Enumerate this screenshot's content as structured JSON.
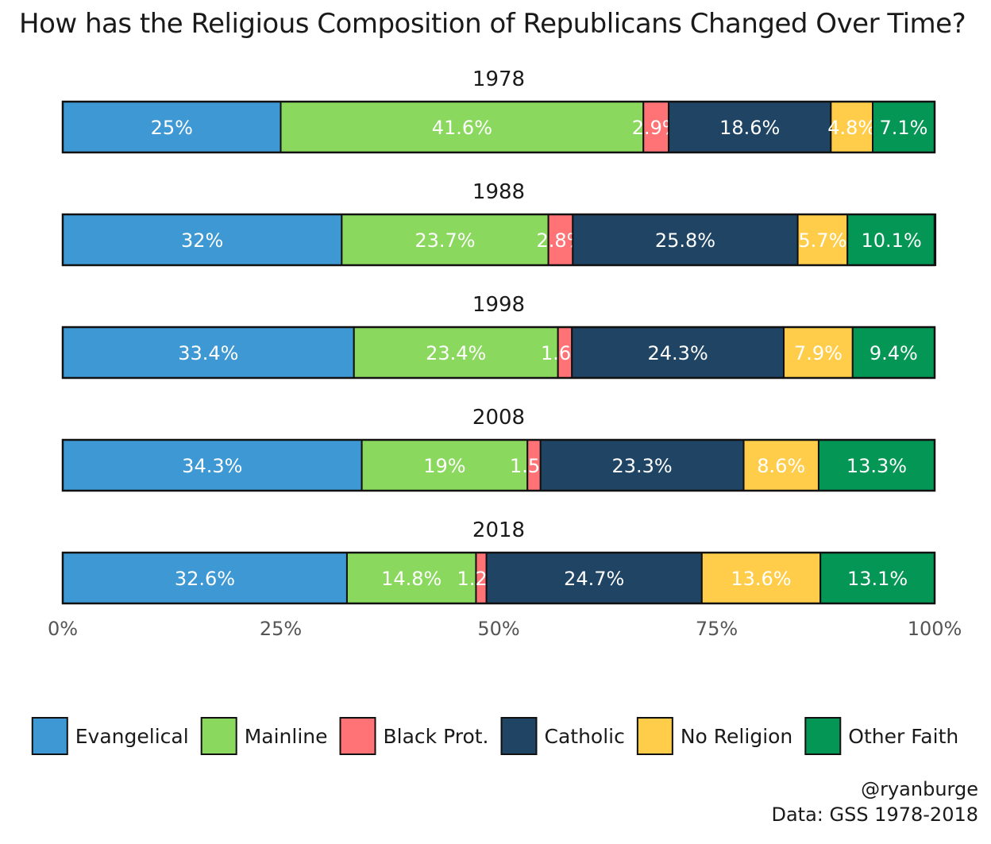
{
  "chart_data": {
    "type": "bar",
    "orientation": "horizontal",
    "stacked": true,
    "title": "How has the Religious Composition of Republicans Changed Over Time?",
    "facets": [
      "1978",
      "1988",
      "1998",
      "2008",
      "2018"
    ],
    "series": [
      {
        "name": "Evangelical",
        "color": "#3d98d3",
        "label_color": "#ffffff",
        "values": [
          25,
          32,
          33.4,
          34.3,
          32.6
        ],
        "labels": [
          "25%",
          "32%",
          "33.4%",
          "34.3%",
          "32.6%"
        ]
      },
      {
        "name": "Mainline",
        "color": "#8ad95e",
        "label_color": "#ffffff",
        "values": [
          41.6,
          23.7,
          23.4,
          19,
          14.8
        ],
        "labels": [
          "41.6%",
          "23.7%",
          "23.4%",
          "19%",
          "14.8%"
        ]
      },
      {
        "name": "Black Prot.",
        "color": "#ff7376",
        "label_color": "#ffffff",
        "values": [
          2.9,
          2.8,
          1.6,
          1.5,
          1.2
        ],
        "labels": [
          "2.9%",
          "2.8%",
          "1.6%",
          "1.5%",
          "1.2%"
        ]
      },
      {
        "name": "Catholic",
        "color": "#1f4464",
        "label_color": "#ffffff",
        "values": [
          18.6,
          25.8,
          24.3,
          23.3,
          24.7
        ],
        "labels": [
          "18.6%",
          "25.8%",
          "24.3%",
          "23.3%",
          "24.7%"
        ]
      },
      {
        "name": "No Religion",
        "color": "#ffcd4a",
        "label_color": "#ffffff",
        "values": [
          4.8,
          5.7,
          7.9,
          8.6,
          13.6
        ],
        "labels": [
          "4.8%",
          "5.7%",
          "7.9%",
          "8.6%",
          "13.6%"
        ]
      },
      {
        "name": "Other Faith",
        "color": "#049654",
        "label_color": "#ffffff",
        "values": [
          7.1,
          10.1,
          9.4,
          13.3,
          13.1
        ],
        "labels": [
          "7.1%",
          "10.1%",
          "9.4%",
          "13.3%",
          "13.1%"
        ]
      }
    ],
    "xlim": [
      0,
      100
    ],
    "x_ticks": [
      0,
      25,
      50,
      75,
      100
    ],
    "x_tick_labels": [
      "0%",
      "25%",
      "50%",
      "75%",
      "100%"
    ],
    "xlabel": "",
    "ylabel": "",
    "grid": false,
    "legend_position": "bottom"
  },
  "credits": {
    "handle": "@ryanburge",
    "source": "Data: GSS 1978-2018"
  }
}
